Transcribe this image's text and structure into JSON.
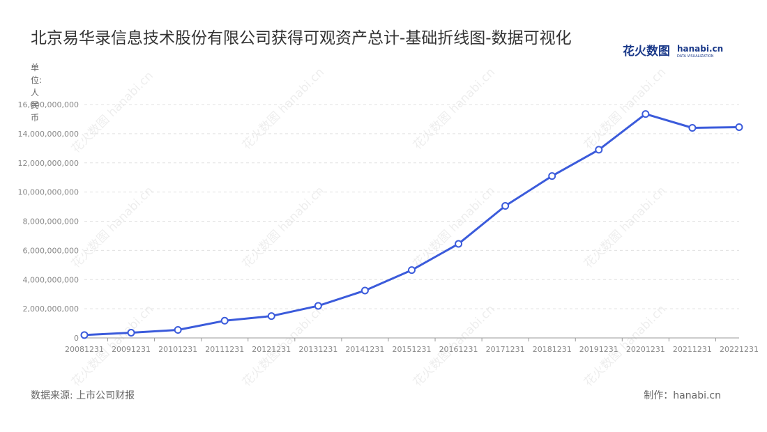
{
  "title": "北京易华录信息技术股份有限公司获得可观资产总计-基础折线图-数据可视化",
  "unit_label": "单位:人民币",
  "logo": {
    "cn": "花火数图",
    "en": "hanabi.cn",
    "sub": "DATA VISUALIZATION"
  },
  "watermark": "花火数图 hanabi.cn",
  "source": "数据来源: 上市公司财报",
  "credit": "制作：hanabi.cn",
  "colors": {
    "line": "#3b5bdb",
    "point_fill": "#ffffff",
    "grid": "#e0e0e0",
    "axis_text": "#888888"
  },
  "chart_data": {
    "type": "line",
    "title": "北京易华录信息技术股份有限公司获得可观资产总计-基础折线图-数据可视化",
    "ylabel": "单位:人民币",
    "categories": [
      "20081231",
      "20091231",
      "20101231",
      "20111231",
      "20121231",
      "20131231",
      "20141231",
      "20151231",
      "20161231",
      "20171231",
      "20181231",
      "20191231",
      "20201231",
      "20211231",
      "20221231"
    ],
    "values": [
      200000000,
      360000000,
      550000000,
      1180000000,
      1500000000,
      2200000000,
      3250000000,
      4650000000,
      6450000000,
      9050000000,
      11100000000,
      12900000000,
      15350000000,
      14400000000,
      14450000000
    ],
    "y_ticks": [
      "0",
      "2,000,000,000",
      "4,000,000,000",
      "6,000,000,000",
      "8,000,000,000",
      "10,000,000,000",
      "12,000,000,000",
      "14,000,000,000",
      "16,000,000,000"
    ],
    "ylim": [
      0,
      16000000000
    ],
    "grid": true
  }
}
